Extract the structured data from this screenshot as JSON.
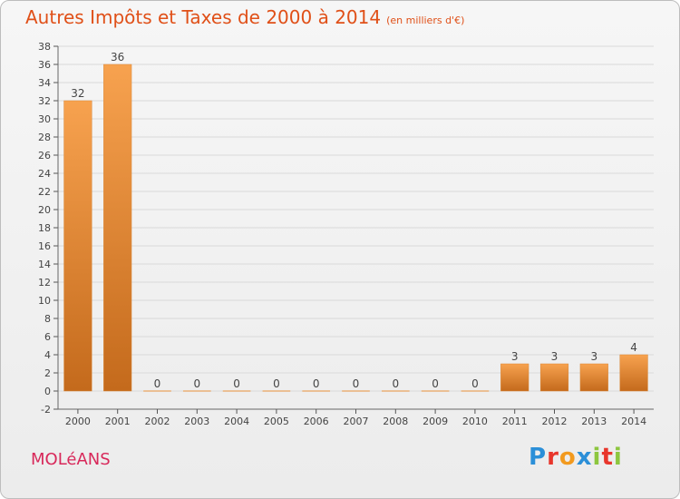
{
  "header": {
    "title": "Autres Impôts et Taxes de 2000 à 2014",
    "subtitle": "(en milliers d'€)"
  },
  "footer": {
    "town": "MOLéANS"
  },
  "logo": {
    "text": "Proxiti"
  },
  "colors": {
    "title": "#e05018",
    "bar_light": "#f7a24f",
    "bar_dark": "#c46a1c",
    "town": "#d8285a",
    "grid": "#d9d9d9"
  },
  "chart_data": {
    "type": "bar",
    "title": "Autres Impôts et Taxes de 2000 à 2014",
    "subtitle": "(en milliers d'€)",
    "categories": [
      "2000",
      "2001",
      "2002",
      "2003",
      "2004",
      "2005",
      "2006",
      "2007",
      "2008",
      "2009",
      "2010",
      "2011",
      "2012",
      "2013",
      "2014"
    ],
    "values": [
      32,
      36,
      0,
      0,
      0,
      0,
      0,
      0,
      0,
      0,
      0,
      3,
      3,
      3,
      4
    ],
    "data_labels": [
      "32",
      "36",
      "0",
      "0",
      "0",
      "0",
      "0",
      "0",
      "0",
      "0",
      "0",
      "3",
      "3",
      "3",
      "4"
    ],
    "ylim": [
      -2,
      38
    ],
    "yticks": [
      -2,
      0,
      2,
      4,
      6,
      8,
      10,
      12,
      14,
      16,
      18,
      20,
      22,
      24,
      26,
      28,
      30,
      32,
      34,
      36,
      38
    ],
    "grid": true
  }
}
